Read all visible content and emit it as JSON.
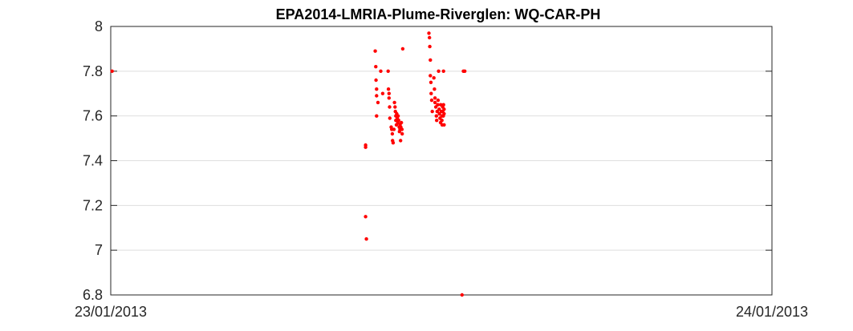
{
  "chart_data": {
    "type": "scatter",
    "title": "EPA2014-LMRIA-Plume-Riverglen: WQ-CAR-PH",
    "xlabel": "",
    "ylabel": "",
    "x_tick_labels": [
      "23/01/2013",
      "24/01/2013"
    ],
    "xlim_hours": [
      0,
      24
    ],
    "ylim": [
      6.8,
      8.0
    ],
    "y_ticks": [
      6.8,
      7.0,
      7.2,
      7.4,
      7.6,
      7.8,
      8.0
    ],
    "y_tick_labels": [
      "6.8",
      "7",
      "7.2",
      "7.4",
      "7.6",
      "7.8",
      "8"
    ],
    "grid": "horizontal",
    "marker_color": "#ff0000",
    "series": [
      {
        "x_hours": [
          0.05,
          9.25,
          9.25,
          9.25,
          9.28,
          9.6,
          9.62,
          9.63,
          9.65,
          9.65,
          9.65,
          9.7,
          9.8,
          9.87,
          10.07,
          10.08,
          10.1,
          10.1,
          10.12,
          10.13,
          10.18,
          10.2,
          10.22,
          10.23,
          10.25,
          10.28,
          10.3,
          10.32,
          10.33,
          10.35,
          10.35,
          10.37,
          10.38,
          10.4,
          10.42,
          10.43,
          10.45,
          10.47,
          10.48,
          10.5,
          10.5,
          10.52,
          10.53,
          10.55,
          10.57,
          10.58,
          10.6,
          11.55,
          11.57,
          11.58,
          11.6,
          11.6,
          11.62,
          11.63,
          11.65,
          11.67,
          11.73,
          11.75,
          11.77,
          11.77,
          11.8,
          11.82,
          11.83,
          11.85,
          11.87,
          11.88,
          11.9,
          11.92,
          11.93,
          11.95,
          11.97,
          11.98,
          12.0,
          12.02,
          12.02,
          12.03,
          12.05,
          12.05,
          12.07,
          12.08,
          12.08,
          12.1,
          12.1,
          12.1,
          12.75,
          12.8,
          12.85
        ],
        "y": [
          7.8,
          7.47,
          7.46,
          7.15,
          7.05,
          7.89,
          7.82,
          7.76,
          7.72,
          7.69,
          7.6,
          7.66,
          7.8,
          7.7,
          7.8,
          7.72,
          7.7,
          7.68,
          7.64,
          7.59,
          7.55,
          7.54,
          7.52,
          7.49,
          7.48,
          7.54,
          7.66,
          7.64,
          7.62,
          7.6,
          7.58,
          7.56,
          7.61,
          7.59,
          7.57,
          7.6,
          7.58,
          7.55,
          7.53,
          7.54,
          7.56,
          7.49,
          7.55,
          7.57,
          7.54,
          7.52,
          7.9,
          7.97,
          7.95,
          7.91,
          7.85,
          7.78,
          7.75,
          7.7,
          7.67,
          7.62,
          7.77,
          7.72,
          7.68,
          7.66,
          7.64,
          7.6,
          7.58,
          7.62,
          7.65,
          7.67,
          7.8,
          7.63,
          7.61,
          7.59,
          7.57,
          7.65,
          7.62,
          7.6,
          7.58,
          7.56,
          7.64,
          7.62,
          7.6,
          7.8,
          7.65,
          7.63,
          7.61,
          7.56,
          6.8,
          7.8,
          7.8
        ]
      }
    ]
  }
}
